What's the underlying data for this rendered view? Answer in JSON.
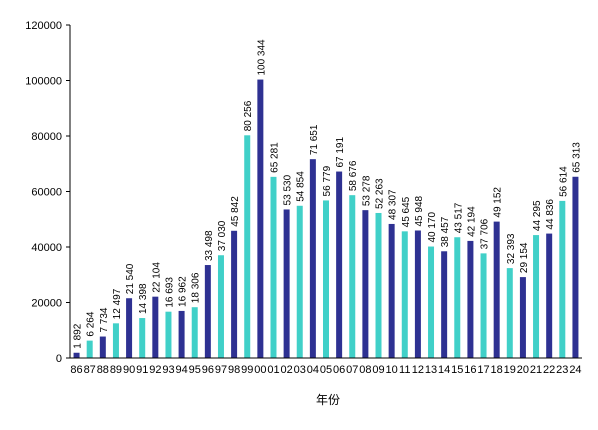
{
  "chart_data": {
    "type": "bar",
    "xlabel": "年份",
    "ylabel": "",
    "ylim": [
      0,
      120000
    ],
    "yticks": [
      0,
      20000,
      40000,
      60000,
      80000,
      100000,
      120000
    ],
    "ytick_labels": [
      "0",
      "20000",
      "40000",
      "60000",
      "80000",
      "100000",
      "120000"
    ],
    "grid": false,
    "categories": [
      "86",
      "87",
      "88",
      "89",
      "90",
      "91",
      "92",
      "93",
      "94",
      "95",
      "96",
      "97",
      "98",
      "99",
      "00",
      "01",
      "02",
      "03",
      "04",
      "05",
      "06",
      "07",
      "08",
      "09",
      "10",
      "11",
      "12",
      "13",
      "14",
      "15",
      "16",
      "17",
      "18",
      "19",
      "20",
      "21",
      "22",
      "23",
      "24"
    ],
    "values": [
      1892,
      6264,
      7734,
      12497,
      21540,
      14398,
      22104,
      16693,
      16962,
      18306,
      33498,
      37030,
      45842,
      80256,
      100344,
      65281,
      53530,
      54854,
      71651,
      56779,
      67191,
      58676,
      53278,
      52263,
      48307,
      45645,
      45948,
      40170,
      38457,
      43517,
      42194,
      37706,
      49152,
      32393,
      29154,
      44295,
      44836,
      56614,
      65313
    ],
    "value_labels": [
      "1 892",
      "6 264",
      "7 734",
      "12 497",
      "21 540",
      "14 398",
      "22 104",
      "16 693",
      "16 962",
      "18 306",
      "33 498",
      "37 030",
      "45 842",
      "80 256",
      "100 344",
      "65 281",
      "53 530",
      "54 854",
      "71 651",
      "56 779",
      "67 191",
      "58 676",
      "53 278",
      "52 263",
      "48 307",
      "45 645",
      "45 948",
      "40 170",
      "38 457",
      "43 517",
      "42 194",
      "37 706",
      "49 152",
      "32 393",
      "29 154",
      "44 295",
      "44 836",
      "56 614",
      "65 313"
    ],
    "bar_colors": [
      "#2e3192",
      "#40d0c8"
    ]
  }
}
